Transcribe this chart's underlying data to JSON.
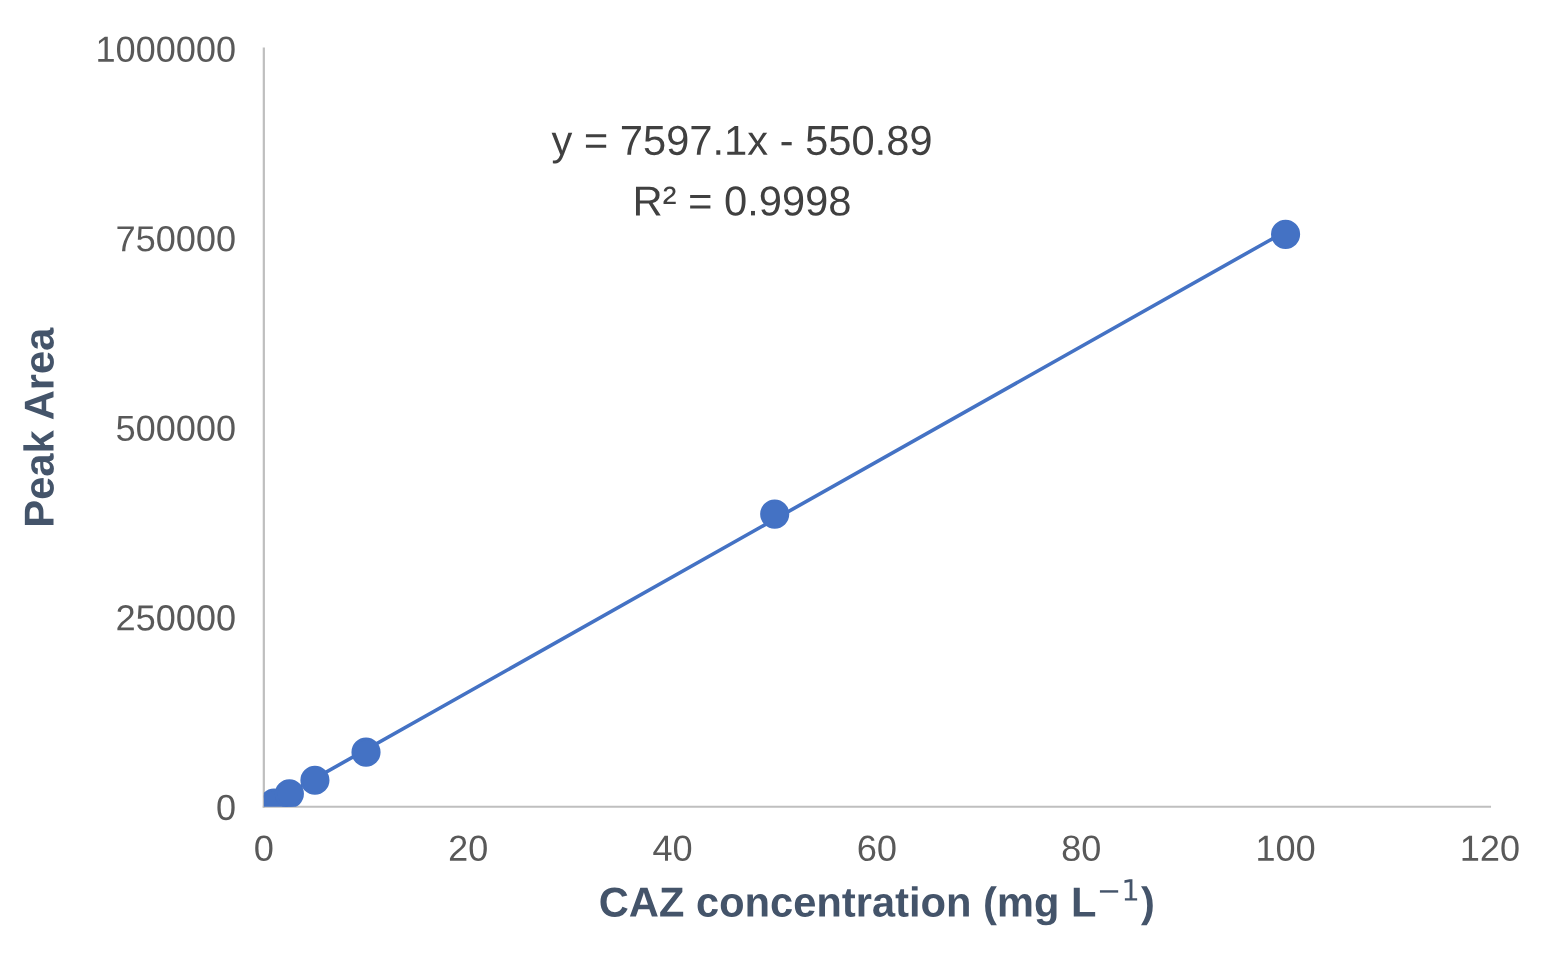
{
  "chart_data": {
    "type": "scatter",
    "xlabel": "CAZ concentration (mg L$^{−1}$)",
    "ylabel": "Peak Area",
    "annotations": [
      "y = 7597.1x - 550.89",
      "R² = 0.9998"
    ],
    "series": [
      {
        "color": "#4472c4",
        "marker": "circle",
        "x": [
          1,
          2.5,
          5,
          10,
          50,
          100
        ],
        "values": [
          5000,
          17000,
          35000,
          72000,
          386000,
          755000
        ]
      },
      {
        "type": "line",
        "color": "#4472c4",
        "x": [
          1,
          100
        ],
        "values": [
          7000,
          759000
        ]
      }
    ],
    "xlim": [
      0,
      120
    ],
    "xticks": [
      0,
      20,
      40,
      60,
      80,
      100,
      120
    ],
    "ylim": [
      0,
      1000000
    ],
    "yticks": [
      0,
      250000,
      500000,
      750000,
      1000000
    ],
    "grid": false,
    "legend": false
  }
}
